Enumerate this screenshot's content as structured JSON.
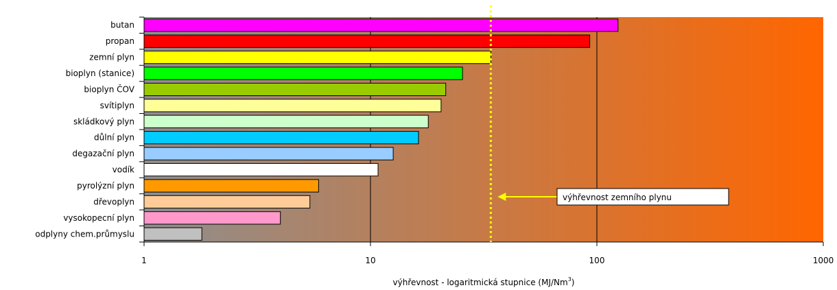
{
  "chart_data": {
    "type": "bar",
    "orientation": "horizontal",
    "x_scale": "log",
    "xlim": [
      1,
      1000
    ],
    "x_ticks": [
      "1",
      "10",
      "100",
      "1000"
    ],
    "x_tick_values": [
      1,
      10,
      100,
      1000
    ],
    "xlabel": "výhřevnost - logaritmická stupnice (MJ/Nm",
    "xlabel_unit_sup": "3",
    "xlabel_close": ")",
    "ylabel": "",
    "grid": "vertical",
    "background": "gradient gray to orange",
    "background_colors": [
      "#8e8e8e",
      "#ff6600"
    ],
    "categories": [
      "butan",
      "propan",
      "zemní plyn",
      "bioplyn (stanice)",
      "bioplyn ČOV",
      "svítiplyn",
      "skládkový plyn",
      "důlní plyn",
      "degazační plyn",
      "vodík",
      "pyrolýzní plyn",
      "dřevoplyn",
      "vysokopecní plyn",
      "odplyny chem.průmyslu"
    ],
    "values": [
      124,
      93,
      34,
      25.5,
      21.5,
      20.5,
      18,
      16.3,
      12.6,
      10.8,
      5.9,
      5.4,
      4,
      1.8
    ],
    "colors": [
      "#ff00ff",
      "#ff0000",
      "#ffff00",
      "#00ff00",
      "#99cc00",
      "#ffff99",
      "#ccffcc",
      "#00ccff",
      "#99ccff",
      "#ffffff",
      "#ff9900",
      "#ffcc99",
      "#ff99cc",
      "#c0c0c0"
    ],
    "reference_line": {
      "value": 34,
      "color": "#ffff00",
      "style": "dotted",
      "label": "výhřevnost zemního plynu"
    }
  }
}
